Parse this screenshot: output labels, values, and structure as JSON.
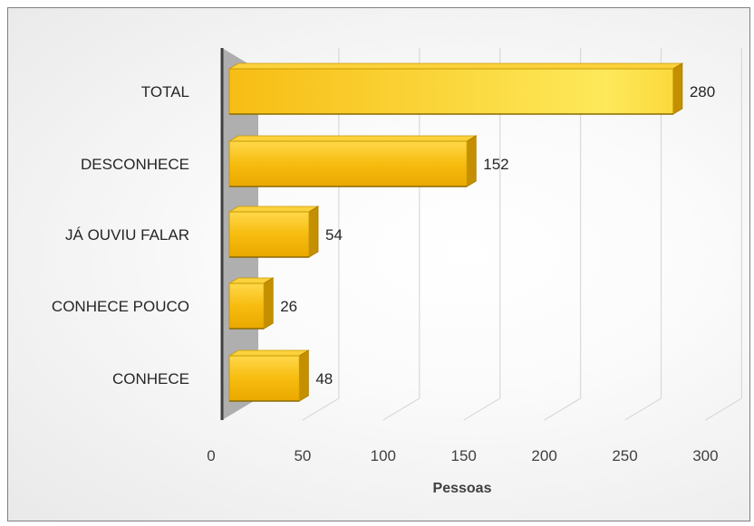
{
  "chart_data": {
    "type": "bar",
    "orientation": "horizontal",
    "style": "3d",
    "categories": [
      "TOTAL",
      "DESCONHECE",
      "JÁ OUVIU FALAR",
      "CONHECE POUCO",
      "CONHECE"
    ],
    "values": [
      280,
      152,
      54,
      26,
      48
    ],
    "xlabel": "Pessoas",
    "ylabel": "",
    "xlim": [
      0,
      300
    ],
    "xticks": [
      0,
      50,
      100,
      150,
      200,
      250,
      300
    ],
    "grid": true,
    "legend": "none",
    "colors": {
      "bar": "#f5b800",
      "bar_top": "#fbd13c",
      "bar_side": "#c48f00",
      "wall": "#a6a6a6"
    }
  }
}
